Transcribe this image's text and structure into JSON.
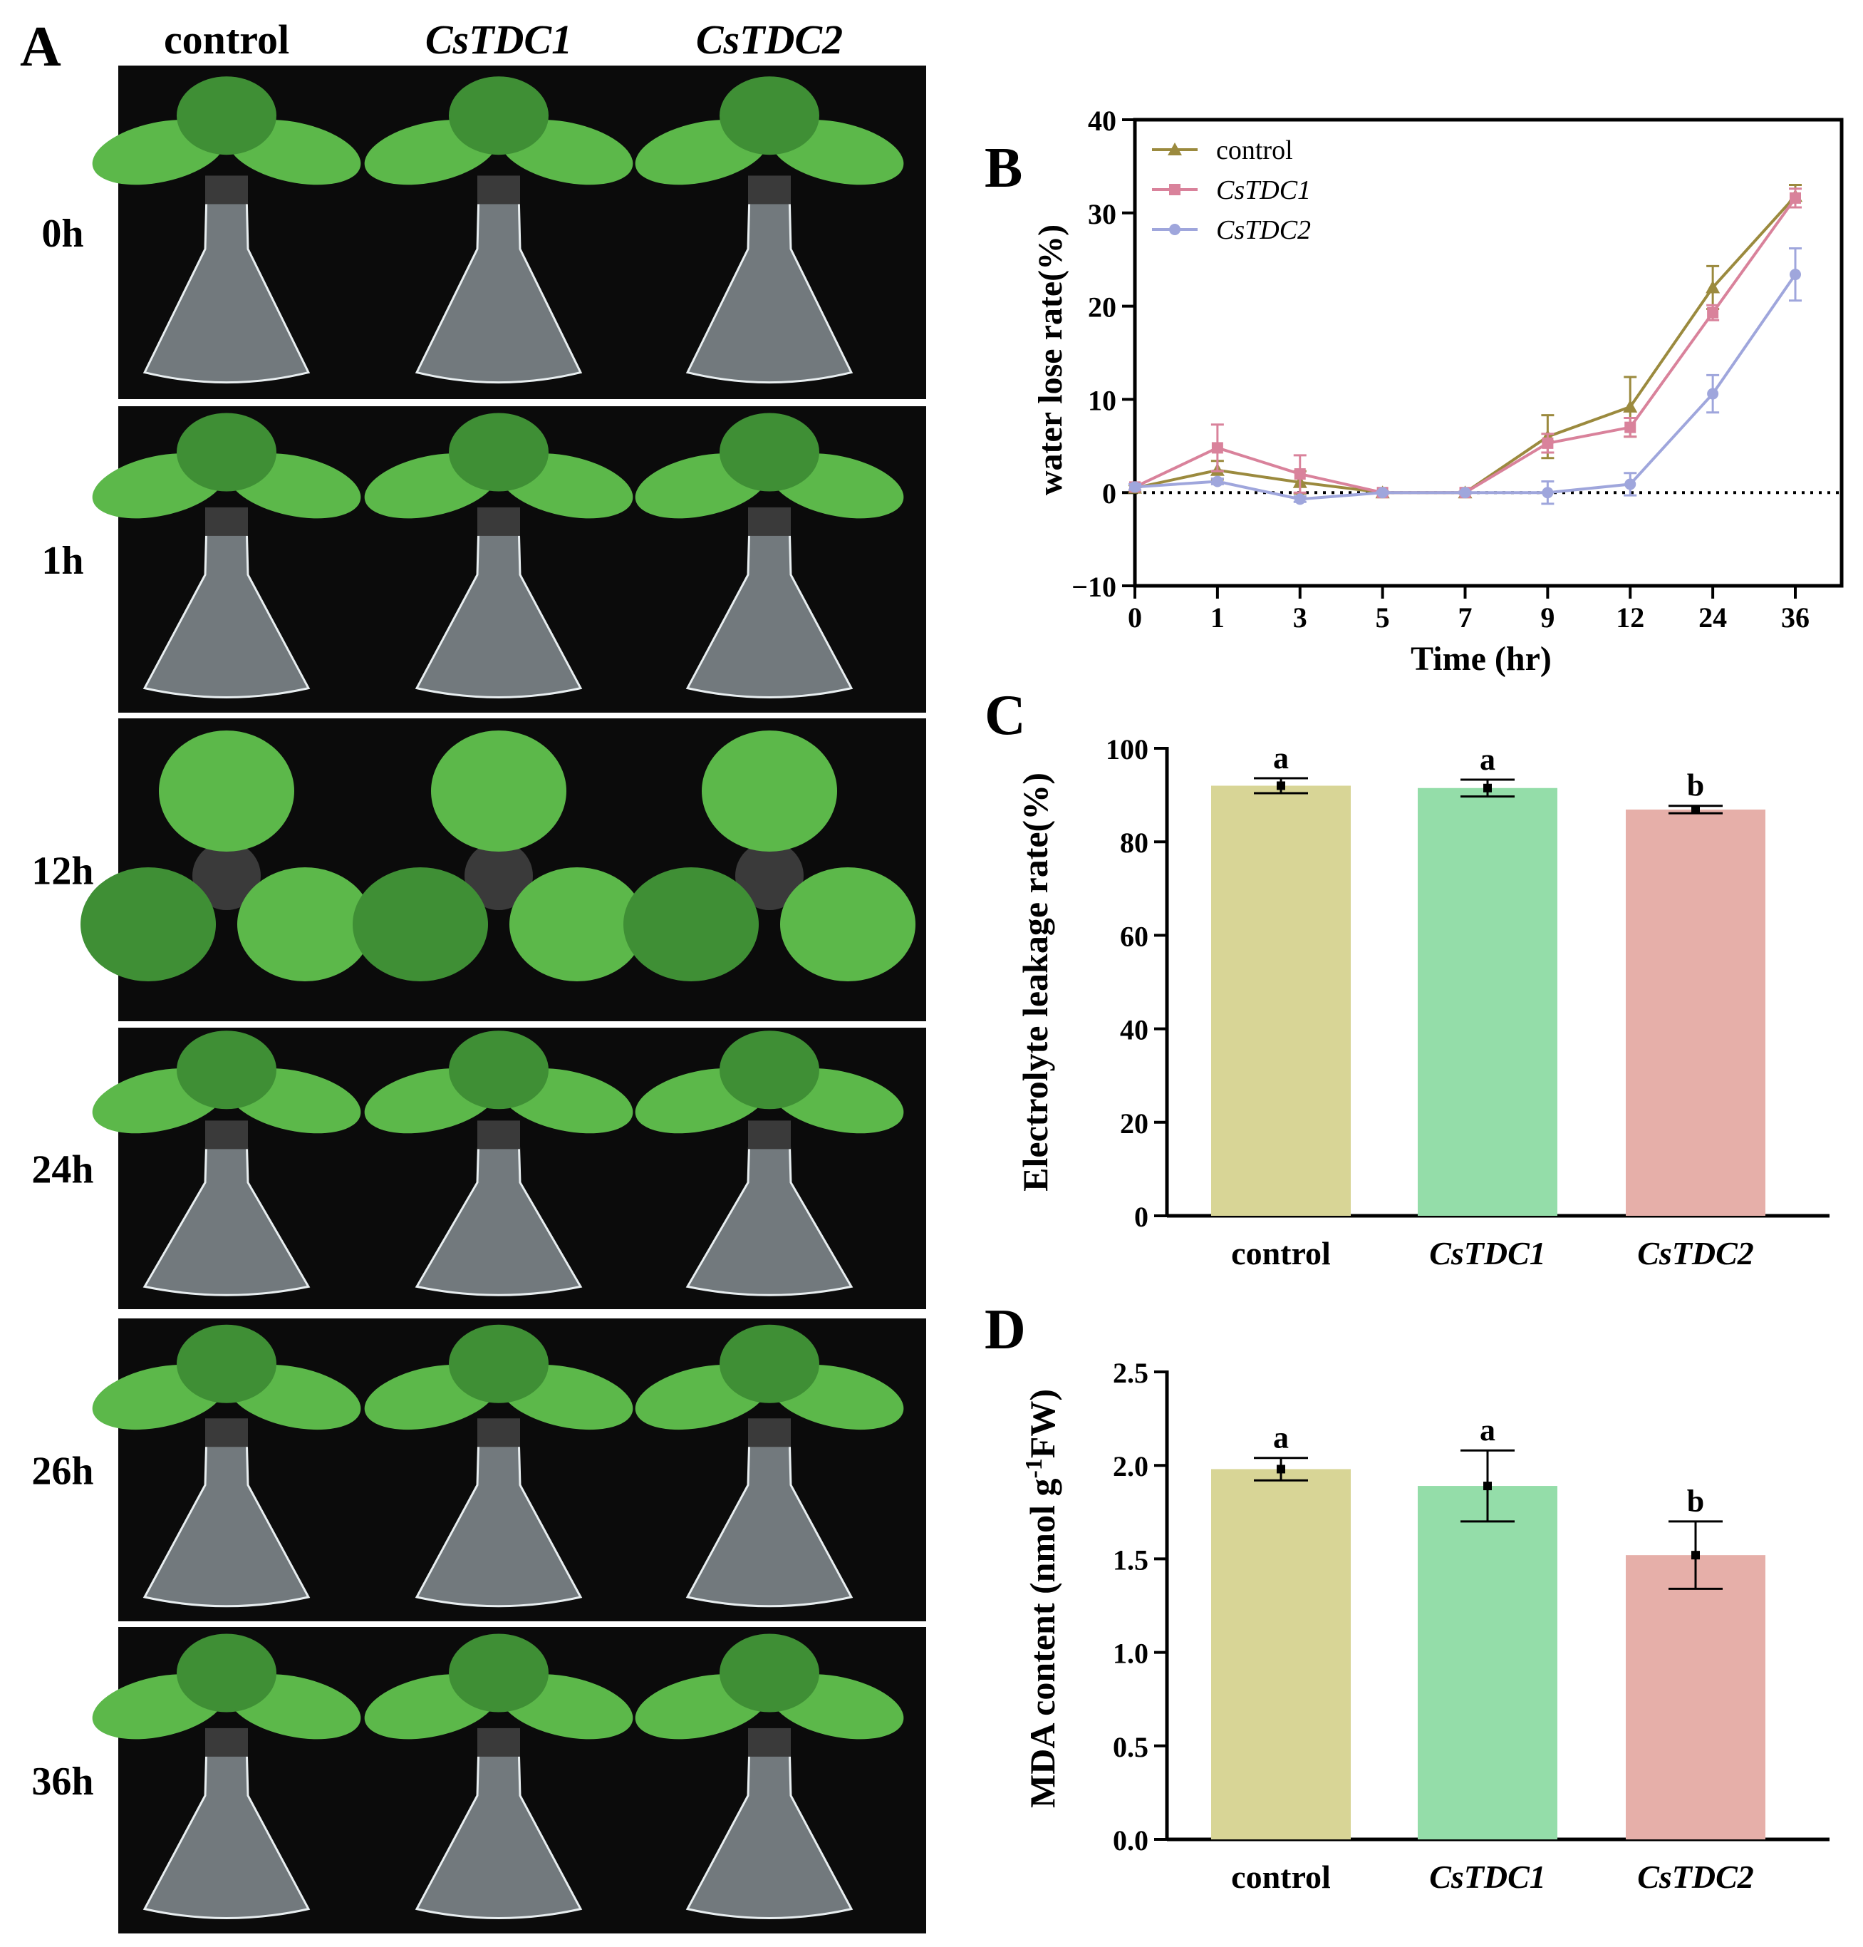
{
  "panel_labels": {
    "a": "A",
    "b": "B",
    "c": "C",
    "d": "D"
  },
  "photo_panel": {
    "column_headers": [
      "control",
      "CsTDC1",
      "CsTDC2"
    ],
    "row_labels": [
      "0h",
      "1h",
      "12h",
      "24h",
      "26h",
      "36h"
    ],
    "colors": {
      "background": "#0b0b0b",
      "leaf": "#5cb84a",
      "leaf_dark": "#3f8f35",
      "glass": "#c9d6dc",
      "sponge": "#3a3a3a"
    }
  },
  "chart_data": [
    {
      "type": "line",
      "panel": "B",
      "title": "",
      "xlabel": "Time (hr)",
      "ylabel": "water lose rate(%)",
      "categories": [
        "0",
        "1",
        "3",
        "5",
        "7",
        "9",
        "12",
        "24",
        "36"
      ],
      "ylim": [
        -10,
        40
      ],
      "yticks": [
        -10,
        0,
        10,
        20,
        30,
        40
      ],
      "reference_line": 0,
      "legend_position": "top-left",
      "series": [
        {
          "name": "control",
          "marker": "triangle",
          "color": "#9b8a3e",
          "values": [
            0.5,
            2.4,
            1.1,
            0.0,
            0.0,
            6.0,
            9.2,
            22.0,
            31.8
          ],
          "errors": [
            0.3,
            1.0,
            1.2,
            0.1,
            0.1,
            2.3,
            3.2,
            2.3,
            1.2
          ]
        },
        {
          "name": "CsTDC1",
          "marker": "square",
          "color": "#d9829b",
          "values": [
            0.6,
            4.8,
            2.0,
            0.0,
            0.0,
            5.3,
            7.0,
            19.3,
            31.6
          ],
          "errors": [
            0.3,
            2.5,
            2.0,
            0.1,
            0.1,
            1.0,
            1.0,
            0.8,
            1.0
          ]
        },
        {
          "name": "CsTDC2",
          "marker": "circle",
          "color": "#9fa6dc",
          "values": [
            0.6,
            1.2,
            -0.7,
            0.0,
            0.0,
            0.0,
            0.9,
            10.6,
            23.4
          ],
          "errors": [
            0.3,
            0.3,
            0.3,
            0.1,
            0.1,
            1.2,
            1.2,
            2.0,
            2.8
          ]
        }
      ]
    },
    {
      "type": "bar",
      "panel": "C",
      "title": "",
      "xlabel": "",
      "ylabel": "Electrolyte leakage rate(%)",
      "categories": [
        "control",
        "CsTDC1",
        "CsTDC2"
      ],
      "values": [
        92.0,
        91.5,
        86.9
      ],
      "errors": [
        1.6,
        1.8,
        0.8
      ],
      "letters": [
        "a",
        "a",
        "b"
      ],
      "colors": [
        "#d8d596",
        "#94dda9",
        "#e6afa9"
      ],
      "ylim": [
        0,
        100
      ],
      "yticks": [
        0,
        20,
        40,
        60,
        80,
        100
      ]
    },
    {
      "type": "bar",
      "panel": "D",
      "title": "",
      "xlabel": "",
      "ylabel": "MDA content (nmol g",
      "ylabel_sup": "-1",
      "ylabel_end": "FW)",
      "categories": [
        "control",
        "CsTDC1",
        "CsTDC2"
      ],
      "values": [
        1.98,
        1.89,
        1.52
      ],
      "errors": [
        0.06,
        0.19,
        0.18
      ],
      "letters": [
        "a",
        "a",
        "b"
      ],
      "colors": [
        "#d8d596",
        "#94dda9",
        "#e6afa9"
      ],
      "ylim": [
        0,
        2.5
      ],
      "yticks": [
        "0.0",
        "0.5",
        "1.0",
        "1.5",
        "2.0",
        "2.5"
      ]
    }
  ]
}
